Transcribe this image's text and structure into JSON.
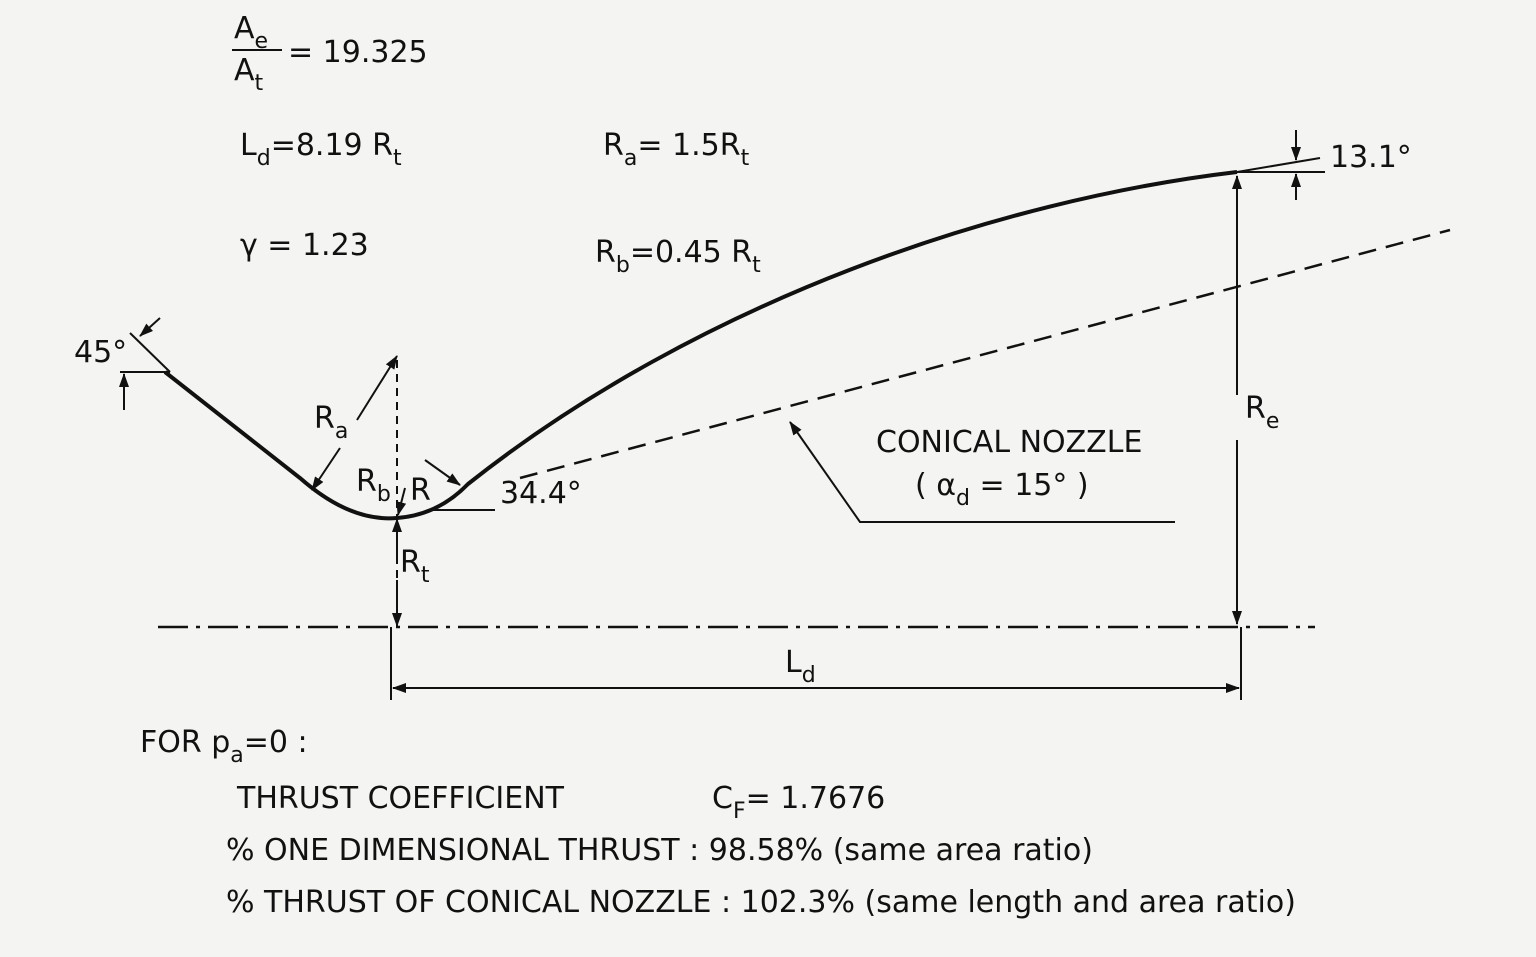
{
  "labels": {
    "area_ratio_numerator": [
      {
        "text": "A"
      },
      {
        "sub": "e"
      }
    ],
    "area_ratio_denominator": [
      {
        "text": "A"
      },
      {
        "sub": "t"
      }
    ],
    "area_ratio_value": [
      {
        "text": "= 19.325"
      }
    ],
    "length_equation": [
      {
        "text": "L"
      },
      {
        "sub": "d"
      },
      {
        "text": "=8.19 R"
      },
      {
        "sub": "t"
      }
    ],
    "ra_equation": [
      {
        "text": "R"
      },
      {
        "sub": "a"
      },
      {
        "text": "= 1.5R"
      },
      {
        "sub": "t"
      }
    ],
    "gamma_equation": [
      {
        "text": "γ = 1.23"
      }
    ],
    "rb_equation": [
      {
        "text": "R"
      },
      {
        "sub": "b"
      },
      {
        "text": "=0.45 R"
      },
      {
        "sub": "t"
      }
    ],
    "angle_inlet": [
      {
        "text": "45°"
      }
    ],
    "angle_exit": [
      {
        "text": "13.1°"
      }
    ],
    "angle_inflection": [
      {
        "text": "34.4°"
      }
    ],
    "ra_mark": [
      {
        "text": "R"
      },
      {
        "sub": "a"
      }
    ],
    "rb_mark": [
      {
        "text": "R"
      },
      {
        "sub": "b"
      }
    ],
    "r_mark": [
      {
        "text": "R"
      }
    ],
    "rt_mark": [
      {
        "text": "R"
      },
      {
        "sub": "t"
      }
    ],
    "re_mark": [
      {
        "text": "R"
      },
      {
        "sub": "e"
      }
    ],
    "ld_mark": [
      {
        "text": "L"
      },
      {
        "sub": "d"
      }
    ],
    "conical_title": [
      {
        "text": "CONICAL NOZZLE"
      }
    ],
    "conical_angle": [
      {
        "text": "( α"
      },
      {
        "sub": "d"
      },
      {
        "text": " = 15° )"
      }
    ],
    "note_condition": [
      {
        "text": "FOR  p"
      },
      {
        "sub": "a"
      },
      {
        "text": "=0 :"
      }
    ],
    "note_coefficient_label": [
      {
        "text": "THRUST  COEFFICIENT"
      }
    ],
    "note_coefficient_value": [
      {
        "text": "C"
      },
      {
        "sub": "F"
      },
      {
        "text": "= 1.7676"
      }
    ],
    "note_one_dimensional": [
      {
        "text": "% ONE  DIMENSIONAL  THRUST : 98.58% (same area ratio)"
      }
    ],
    "note_conical": [
      {
        "text": "% THRUST  OF  CONICAL  NOZZLE : 102.3% (same  length and area ratio)"
      }
    ]
  }
}
